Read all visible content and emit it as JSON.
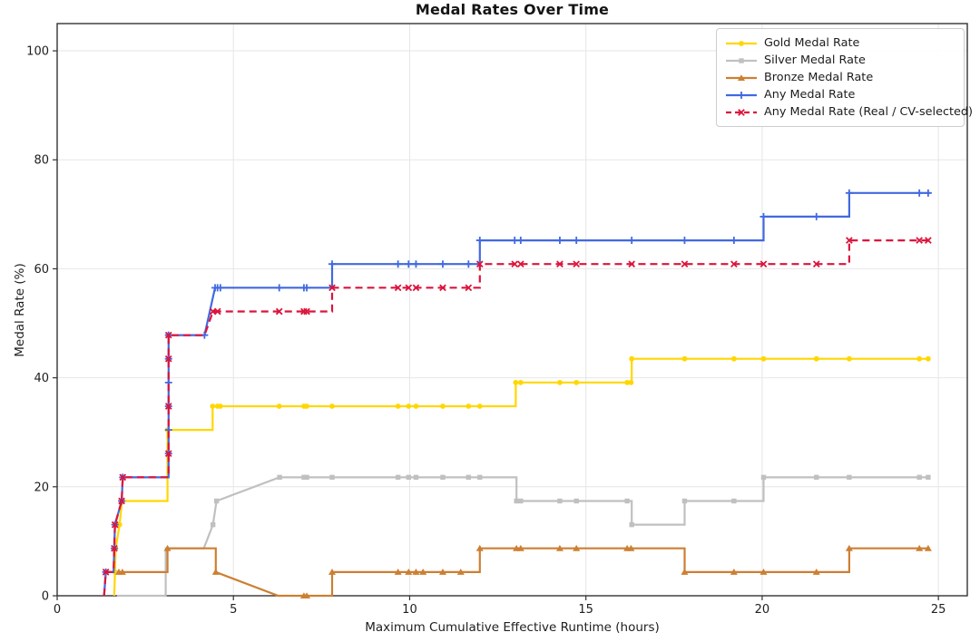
{
  "title": "Medal Rates Over Time",
  "chart_data": {
    "type": "line",
    "title": "Medal Rates Over Time",
    "xlabel": "Maximum Cumulative Effective Runtime (hours)",
    "ylabel": "Medal Rate (%)",
    "xlim": [
      0,
      25.82
    ],
    "ylim": [
      0,
      105
    ],
    "xticks": [
      0,
      5,
      10,
      15,
      20,
      25
    ],
    "yticks": [
      0,
      20,
      40,
      60,
      80,
      100
    ],
    "grid": true,
    "legend_position": "upper right",
    "series": [
      {
        "name": "Gold Medal Rate",
        "color": "#FFD700",
        "dash": null,
        "marker": "o",
        "points": [
          [
            1.62,
            0
          ],
          [
            1.64,
            4.35
          ],
          [
            1.66,
            8.7
          ],
          [
            1.77,
            13.04
          ],
          [
            1.84,
            17.39
          ],
          [
            3.13,
            17.39
          ],
          [
            3.13,
            30.43
          ],
          [
            4.41,
            30.43
          ],
          [
            4.41,
            34.78
          ],
          [
            13.01,
            34.78
          ],
          [
            13.01,
            39.13
          ],
          [
            16.3,
            39.13
          ],
          [
            16.3,
            43.48
          ],
          [
            24.76,
            43.48
          ]
        ],
        "markers": [
          [
            1.64,
            4.35
          ],
          [
            1.66,
            8.7
          ],
          [
            1.77,
            13.04
          ],
          [
            1.84,
            17.39
          ],
          [
            3.13,
            30.43
          ],
          [
            4.41,
            34.78
          ],
          [
            4.55,
            34.78
          ],
          [
            4.63,
            34.78
          ],
          [
            6.3,
            34.78
          ],
          [
            7.0,
            34.78
          ],
          [
            7.08,
            34.78
          ],
          [
            7.8,
            34.78
          ],
          [
            9.67,
            34.78
          ],
          [
            9.97,
            34.78
          ],
          [
            10.18,
            34.78
          ],
          [
            10.94,
            34.78
          ],
          [
            11.67,
            34.78
          ],
          [
            11.99,
            34.78
          ],
          [
            13.01,
            39.13
          ],
          [
            13.15,
            39.13
          ],
          [
            14.26,
            39.13
          ],
          [
            14.73,
            39.13
          ],
          [
            16.17,
            39.13
          ],
          [
            16.28,
            39.13
          ],
          [
            16.3,
            43.48
          ],
          [
            17.8,
            43.48
          ],
          [
            19.2,
            43.48
          ],
          [
            20.04,
            43.48
          ],
          [
            21.54,
            43.48
          ],
          [
            22.47,
            43.48
          ],
          [
            24.46,
            43.48
          ],
          [
            24.71,
            43.48
          ]
        ]
      },
      {
        "name": "Silver Medal Rate",
        "color": "#C0C0C0",
        "dash": null,
        "marker": "s",
        "points": [
          [
            1.7,
            0
          ],
          [
            3.08,
            0
          ],
          [
            3.08,
            8.7
          ],
          [
            4.16,
            8.7
          ],
          [
            4.42,
            13.04
          ],
          [
            4.52,
            17.39
          ],
          [
            6.31,
            21.74
          ],
          [
            13.03,
            21.74
          ],
          [
            13.03,
            17.39
          ],
          [
            16.3,
            17.39
          ],
          [
            16.3,
            13.04
          ],
          [
            17.8,
            13.04
          ],
          [
            17.8,
            17.39
          ],
          [
            20.04,
            17.39
          ],
          [
            20.04,
            21.74
          ],
          [
            24.76,
            21.74
          ]
        ],
        "markers": [
          [
            4.42,
            13.04
          ],
          [
            4.52,
            17.39
          ],
          [
            6.31,
            21.74
          ],
          [
            7.0,
            21.74
          ],
          [
            7.08,
            21.74
          ],
          [
            7.8,
            21.74
          ],
          [
            9.67,
            21.74
          ],
          [
            9.97,
            21.74
          ],
          [
            10.18,
            21.74
          ],
          [
            10.94,
            21.74
          ],
          [
            11.67,
            21.74
          ],
          [
            11.99,
            21.74
          ],
          [
            13.03,
            17.39
          ],
          [
            13.15,
            17.39
          ],
          [
            14.26,
            17.39
          ],
          [
            14.73,
            17.39
          ],
          [
            16.17,
            17.39
          ],
          [
            16.3,
            13.04
          ],
          [
            17.8,
            17.39
          ],
          [
            19.2,
            17.39
          ],
          [
            20.04,
            21.74
          ],
          [
            21.54,
            21.74
          ],
          [
            22.47,
            21.74
          ],
          [
            24.46,
            21.74
          ],
          [
            24.71,
            21.74
          ]
        ]
      },
      {
        "name": "Bronze Medal Rate",
        "color": "#CD7F32",
        "dash": null,
        "marker": "^",
        "points": [
          [
            1.7,
            4.35
          ],
          [
            3.13,
            4.35
          ],
          [
            3.13,
            8.7
          ],
          [
            4.5,
            8.7
          ],
          [
            4.5,
            4.35
          ],
          [
            6.27,
            0
          ],
          [
            7.8,
            0
          ],
          [
            7.8,
            4.35
          ],
          [
            11.99,
            4.35
          ],
          [
            11.99,
            8.7
          ],
          [
            17.8,
            8.7
          ],
          [
            17.8,
            4.35
          ],
          [
            22.47,
            4.35
          ],
          [
            22.47,
            8.7
          ],
          [
            24.76,
            8.7
          ]
        ],
        "markers": [
          [
            1.75,
            4.35
          ],
          [
            1.85,
            4.35
          ],
          [
            3.13,
            8.7
          ],
          [
            4.5,
            4.35
          ],
          [
            7.0,
            0
          ],
          [
            7.08,
            0
          ],
          [
            7.8,
            4.35
          ],
          [
            9.67,
            4.35
          ],
          [
            9.97,
            4.35
          ],
          [
            10.18,
            4.35
          ],
          [
            10.38,
            4.35
          ],
          [
            10.94,
            4.35
          ],
          [
            11.45,
            4.35
          ],
          [
            11.99,
            8.7
          ],
          [
            13.03,
            8.7
          ],
          [
            13.15,
            8.7
          ],
          [
            14.26,
            8.7
          ],
          [
            14.73,
            8.7
          ],
          [
            16.17,
            8.7
          ],
          [
            16.28,
            8.7
          ],
          [
            17.8,
            4.35
          ],
          [
            19.2,
            4.35
          ],
          [
            20.04,
            4.35
          ],
          [
            21.54,
            4.35
          ],
          [
            22.47,
            8.7
          ],
          [
            24.46,
            8.7
          ],
          [
            24.71,
            8.7
          ]
        ]
      },
      {
        "name": "Any Medal Rate",
        "color": "#4169E1",
        "dash": null,
        "marker": "+",
        "points": [
          [
            1.33,
            0
          ],
          [
            1.38,
            4.35
          ],
          [
            1.6,
            4.35
          ],
          [
            1.62,
            8.7
          ],
          [
            1.64,
            13.04
          ],
          [
            1.83,
            17.39
          ],
          [
            1.86,
            21.74
          ],
          [
            3.16,
            21.74
          ],
          [
            3.16,
            47.83
          ],
          [
            4.18,
            47.83
          ],
          [
            4.48,
            56.52
          ],
          [
            7.8,
            56.52
          ],
          [
            7.8,
            60.87
          ],
          [
            11.99,
            60.87
          ],
          [
            11.99,
            65.22
          ],
          [
            20.04,
            65.22
          ],
          [
            20.04,
            69.57
          ],
          [
            22.47,
            69.57
          ],
          [
            22.47,
            73.91
          ],
          [
            24.76,
            73.91
          ]
        ],
        "markers": [
          [
            1.38,
            4.35
          ],
          [
            1.62,
            8.7
          ],
          [
            1.64,
            13.04
          ],
          [
            1.83,
            17.39
          ],
          [
            1.86,
            21.74
          ],
          [
            3.16,
            26.09
          ],
          [
            3.16,
            30.43
          ],
          [
            3.16,
            34.78
          ],
          [
            3.16,
            39.13
          ],
          [
            3.16,
            43.48
          ],
          [
            3.16,
            47.83
          ],
          [
            4.18,
            47.83
          ],
          [
            4.48,
            56.52
          ],
          [
            4.55,
            56.52
          ],
          [
            4.63,
            56.52
          ],
          [
            6.3,
            56.52
          ],
          [
            7.0,
            56.52
          ],
          [
            7.08,
            56.52
          ],
          [
            7.8,
            60.87
          ],
          [
            9.67,
            60.87
          ],
          [
            9.97,
            60.87
          ],
          [
            10.18,
            60.87
          ],
          [
            10.94,
            60.87
          ],
          [
            11.67,
            60.87
          ],
          [
            11.99,
            65.22
          ],
          [
            12.98,
            65.22
          ],
          [
            13.15,
            65.22
          ],
          [
            14.26,
            65.22
          ],
          [
            14.73,
            65.22
          ],
          [
            16.3,
            65.22
          ],
          [
            17.8,
            65.22
          ],
          [
            19.2,
            65.22
          ],
          [
            20.04,
            69.57
          ],
          [
            21.54,
            69.57
          ],
          [
            22.47,
            73.91
          ],
          [
            24.46,
            73.91
          ],
          [
            24.71,
            73.91
          ]
        ]
      },
      {
        "name": "Any Medal Rate (Real / CV-selected)",
        "color": "#DC143C",
        "dash": "8 5",
        "marker": "x",
        "points": [
          [
            1.33,
            0
          ],
          [
            1.38,
            4.35
          ],
          [
            1.6,
            4.35
          ],
          [
            1.62,
            8.7
          ],
          [
            1.64,
            13.04
          ],
          [
            1.83,
            17.39
          ],
          [
            1.86,
            21.74
          ],
          [
            3.16,
            21.74
          ],
          [
            3.16,
            47.83
          ],
          [
            4.18,
            47.83
          ],
          [
            4.42,
            52.17
          ],
          [
            7.8,
            52.17
          ],
          [
            7.8,
            56.52
          ],
          [
            11.99,
            56.52
          ],
          [
            11.99,
            60.87
          ],
          [
            22.47,
            60.87
          ],
          [
            22.47,
            65.22
          ],
          [
            24.76,
            65.22
          ]
        ],
        "markers": [
          [
            1.38,
            4.35
          ],
          [
            1.62,
            8.7
          ],
          [
            1.64,
            13.04
          ],
          [
            1.83,
            17.39
          ],
          [
            1.86,
            21.74
          ],
          [
            3.16,
            26.09
          ],
          [
            3.16,
            34.78
          ],
          [
            3.16,
            43.48
          ],
          [
            3.16,
            47.83
          ],
          [
            4.42,
            52.17
          ],
          [
            4.55,
            52.17
          ],
          [
            6.3,
            52.17
          ],
          [
            7.0,
            52.17
          ],
          [
            7.08,
            52.17
          ],
          [
            7.8,
            56.52
          ],
          [
            9.67,
            56.52
          ],
          [
            9.97,
            56.52
          ],
          [
            10.18,
            56.52
          ],
          [
            10.94,
            56.52
          ],
          [
            11.67,
            56.52
          ],
          [
            11.99,
            60.87
          ],
          [
            12.98,
            60.87
          ],
          [
            13.15,
            60.87
          ],
          [
            14.26,
            60.87
          ],
          [
            14.73,
            60.87
          ],
          [
            16.3,
            60.87
          ],
          [
            17.8,
            60.87
          ],
          [
            19.2,
            60.87
          ],
          [
            20.04,
            60.87
          ],
          [
            21.54,
            60.87
          ],
          [
            22.47,
            65.22
          ],
          [
            24.46,
            65.22
          ],
          [
            24.71,
            65.22
          ]
        ]
      }
    ],
    "colors": {
      "grid": "#e6e6e6",
      "spine": "#333333",
      "tick_text": "#202020"
    }
  }
}
